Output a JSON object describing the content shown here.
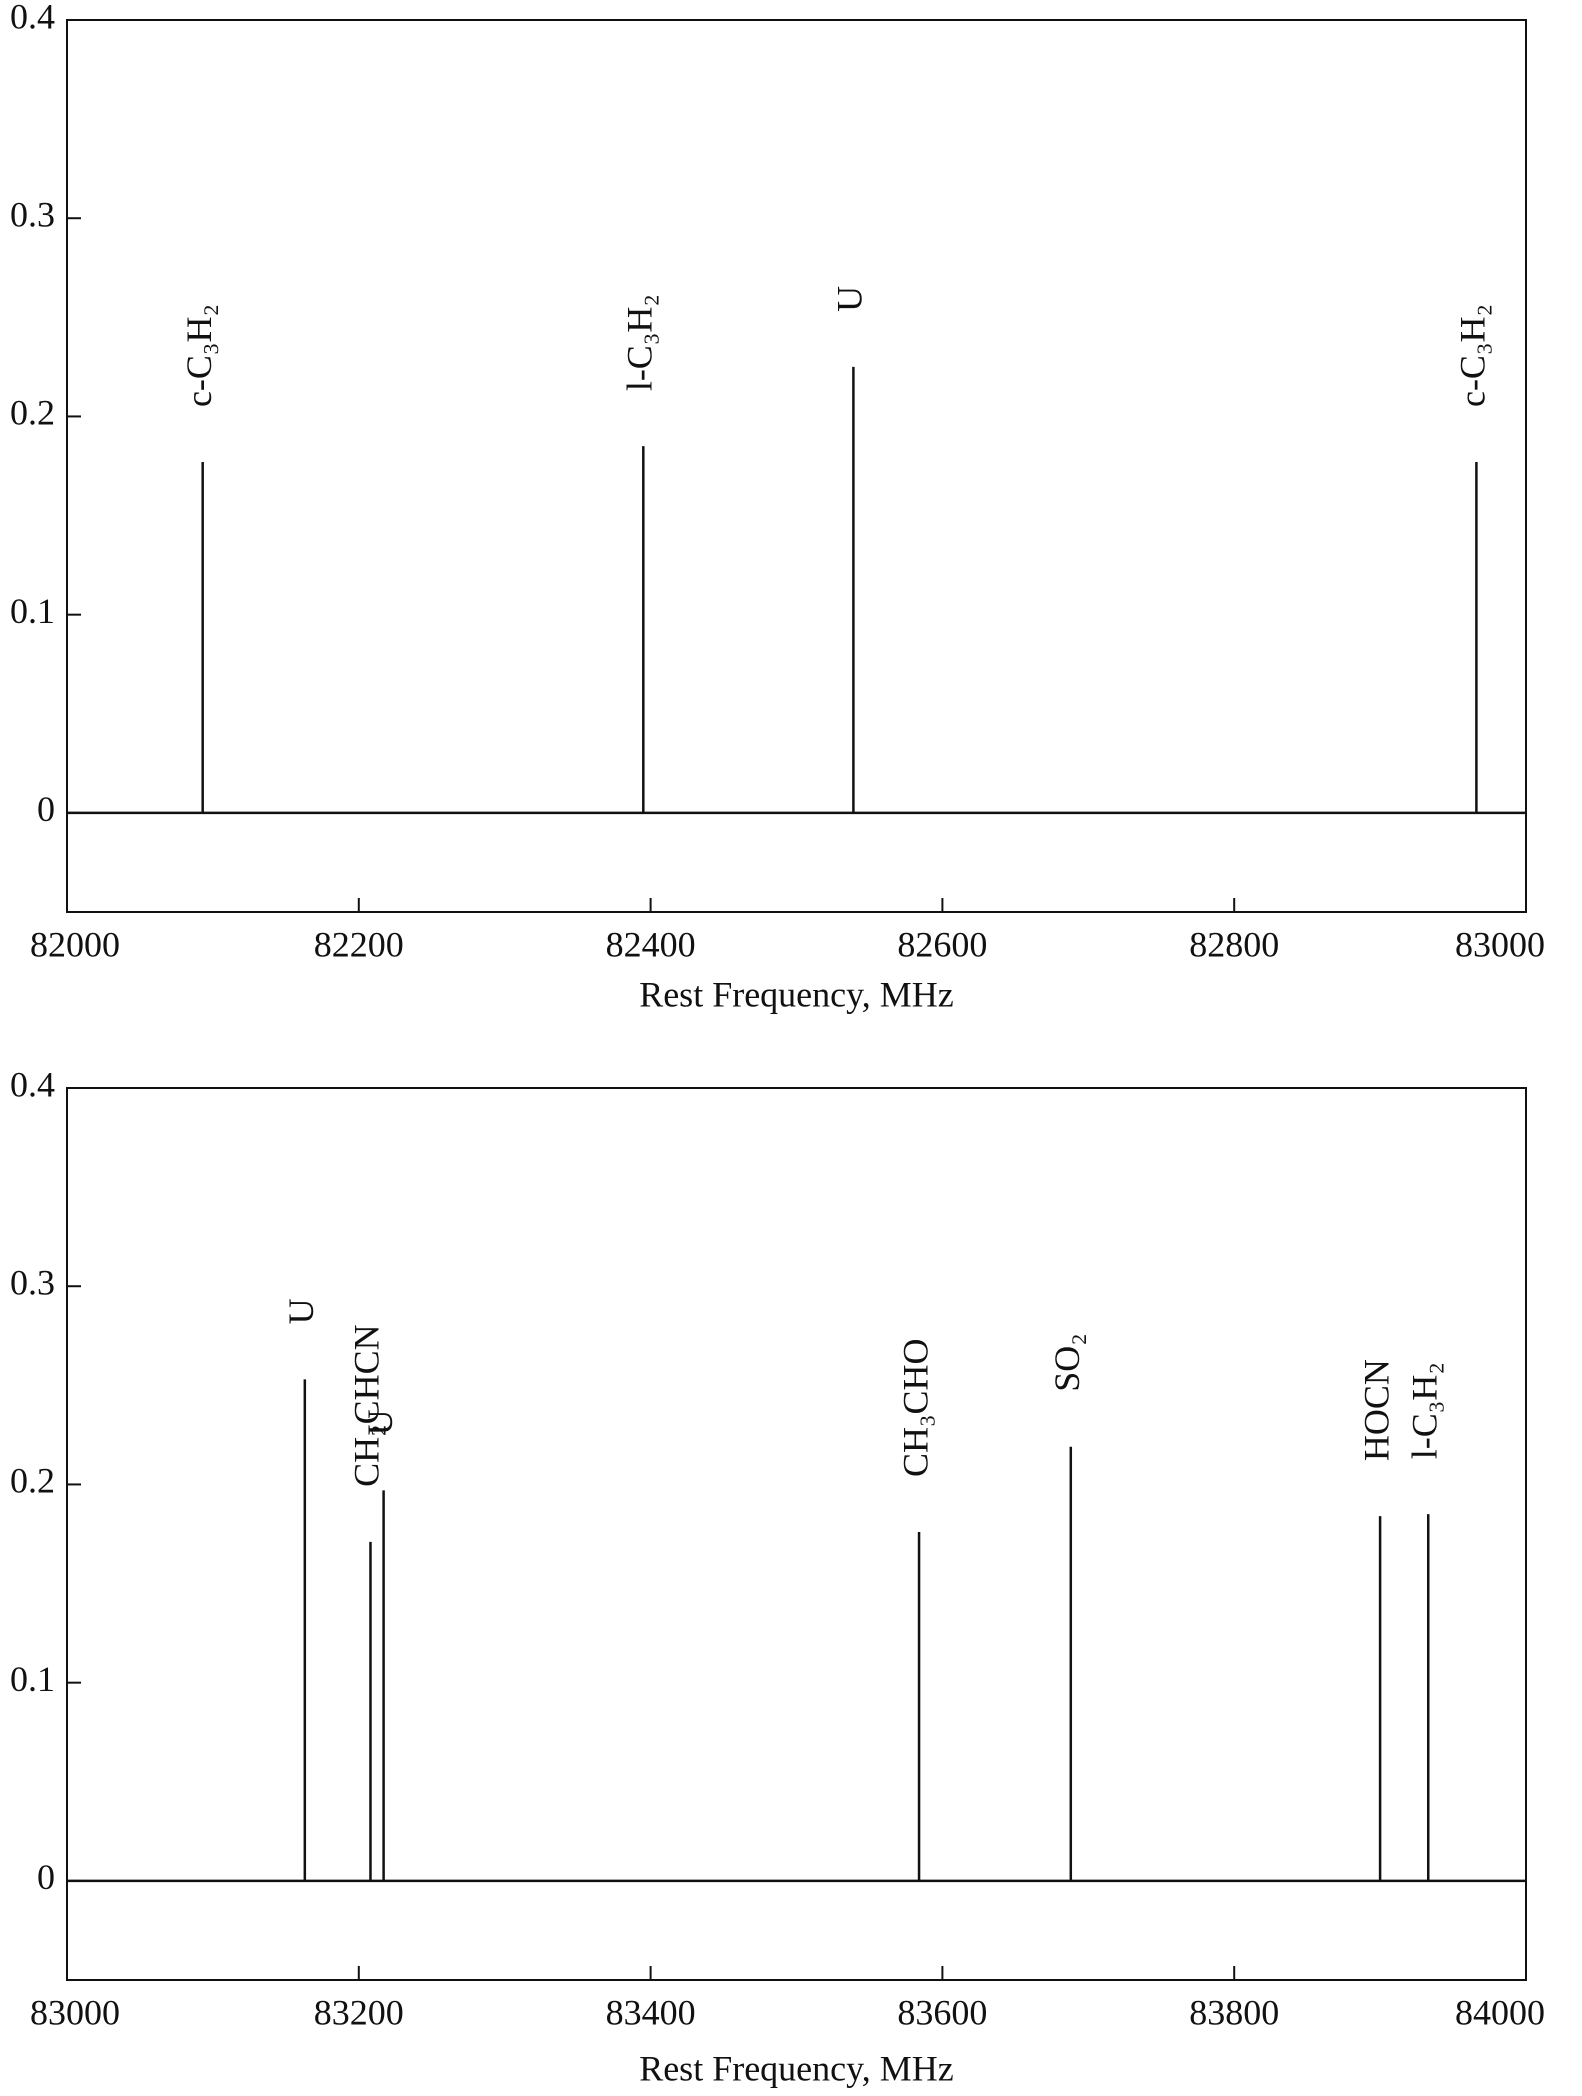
{
  "chart_data": [
    {
      "type": "stem",
      "xlabel": "Rest Frequency, MHz",
      "color": "#111111",
      "x": [
        82093,
        82395,
        82539,
        82966
      ],
      "values": [
        0.177,
        0.185,
        0.225,
        0.177
      ],
      "labels": [
        "c-C₃H₂",
        "l-C₃H₂",
        "U",
        "c-C₃H₂"
      ],
      "xlim": [
        82000,
        83000
      ],
      "xticks": [
        82000,
        82200,
        82400,
        82600,
        82800,
        83000
      ],
      "ylim": [
        -0.05,
        0.4
      ],
      "yticks": [
        0,
        0.1,
        0.2,
        0.3,
        0.4
      ]
    },
    {
      "type": "stem",
      "xlabel": "Rest Frequency, MHz",
      "color": "#111111",
      "x": [
        83163,
        83208,
        83217,
        83584,
        83688,
        83900,
        83933
      ],
      "values": [
        0.253,
        0.171,
        0.197,
        0.176,
        0.219,
        0.184,
        0.185
      ],
      "labels": [
        "U",
        "CH₂CHCN",
        "U",
        "CH₃CHO",
        "SO₂",
        "HOCN",
        "l-C₃H₂"
      ],
      "xlim": [
        83000,
        84000
      ],
      "xticks": [
        83000,
        83200,
        83400,
        83600,
        83800,
        84000
      ],
      "ylim": [
        -0.05,
        0.4
      ],
      "yticks": [
        0,
        0.1,
        0.2,
        0.3,
        0.4
      ]
    }
  ]
}
